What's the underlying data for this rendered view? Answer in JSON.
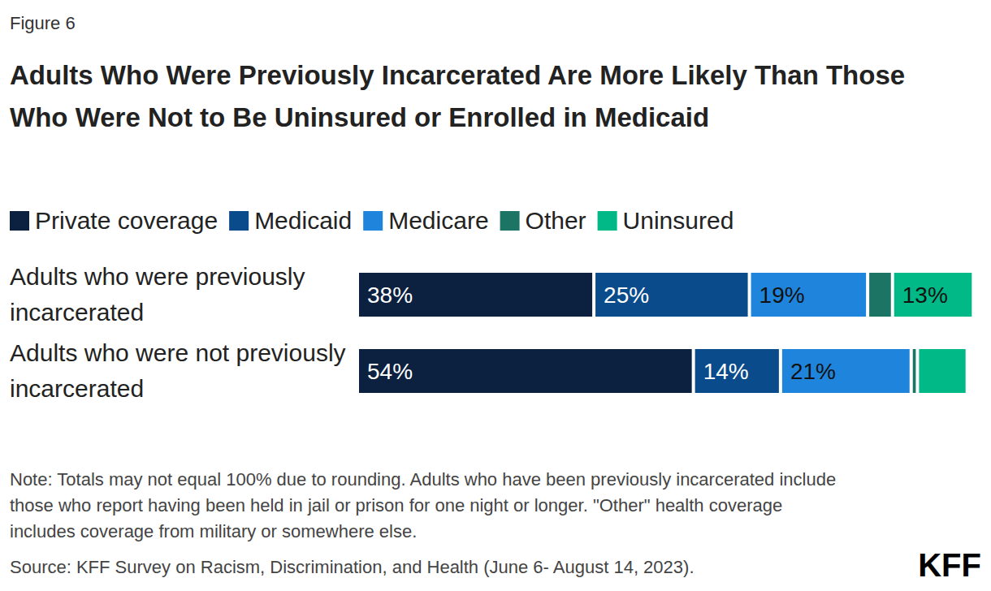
{
  "chart_data": {
    "type": "bar",
    "figure_label": "Figure 6",
    "title": "Adults Who Were Previously Incarcerated Are More Likely Than Those Who Were Not to Be Uninsured or Enrolled in Medicaid",
    "categories": [
      "Adults who were previously incarcerated",
      "Adults who were not previously incarcerated"
    ],
    "series": [
      {
        "name": "Private coverage",
        "color": "#0b213f",
        "values": [
          38,
          54
        ],
        "value_labels": [
          "38%",
          "54%"
        ]
      },
      {
        "name": "Medicaid",
        "color": "#0a4b8c",
        "values": [
          25,
          14
        ],
        "value_labels": [
          "25%",
          "14%"
        ]
      },
      {
        "name": "Medicare",
        "color": "#1f85dc",
        "values": [
          19,
          21
        ],
        "value_labels": [
          "19%",
          "21%"
        ]
      },
      {
        "name": "Other",
        "color": "#1c7465",
        "values": [
          4,
          1
        ],
        "value_labels": [
          null,
          null
        ]
      },
      {
        "name": "Uninsured",
        "color": "#00b987",
        "values": [
          13,
          8
        ],
        "value_labels": [
          "13%",
          null
        ]
      }
    ],
    "xlim": [
      0,
      100
    ],
    "orientation": "horizontal",
    "stacked": true,
    "data_labels": true,
    "tick_labels": "y",
    "grid": false,
    "legend": "top",
    "note": "Note: Totals may not equal 100% due to rounding. Adults who have been previously incarcerated include those who report having been held in jail or prison for one night or longer. \"Other\" health coverage includes coverage from military or somewhere else.",
    "source": "Source: KFF Survey on Racism, Discrimination, and Health (June 6- August 14, 2023).",
    "logo": "KFF"
  }
}
